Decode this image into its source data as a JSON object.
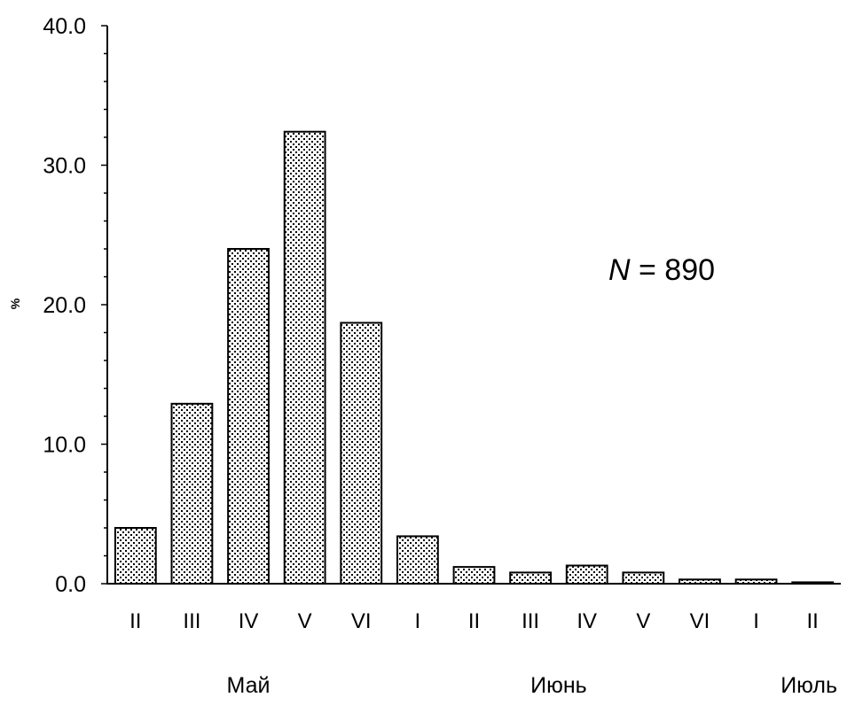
{
  "chart_data": {
    "type": "bar",
    "ylabel": "%",
    "ylim": [
      0,
      40
    ],
    "yticks": [
      "0.0",
      "10.0",
      "20.0",
      "30.0",
      "40.0"
    ],
    "categories": [
      "II",
      "III",
      "IV",
      "V",
      "VI",
      "I",
      "II",
      "III",
      "IV",
      "V",
      "VI",
      "I",
      "II"
    ],
    "values": [
      4.0,
      12.9,
      24.0,
      32.4,
      18.7,
      3.4,
      1.2,
      0.8,
      1.3,
      0.8,
      0.3,
      0.3,
      0.1
    ],
    "month_groups": [
      {
        "label": "Май",
        "start": 0,
        "end": 4
      },
      {
        "label": "Июнь",
        "start": 5,
        "end": 10
      },
      {
        "label": "Июль",
        "start": 11,
        "end": 12
      }
    ],
    "annotation": {
      "variable": "N",
      "text": " = 890"
    },
    "bar_fill": "dotted",
    "grid": false,
    "colors": {
      "bar_outline": "#000000",
      "bar_background": "#ffffff",
      "axis": "#000000"
    }
  }
}
